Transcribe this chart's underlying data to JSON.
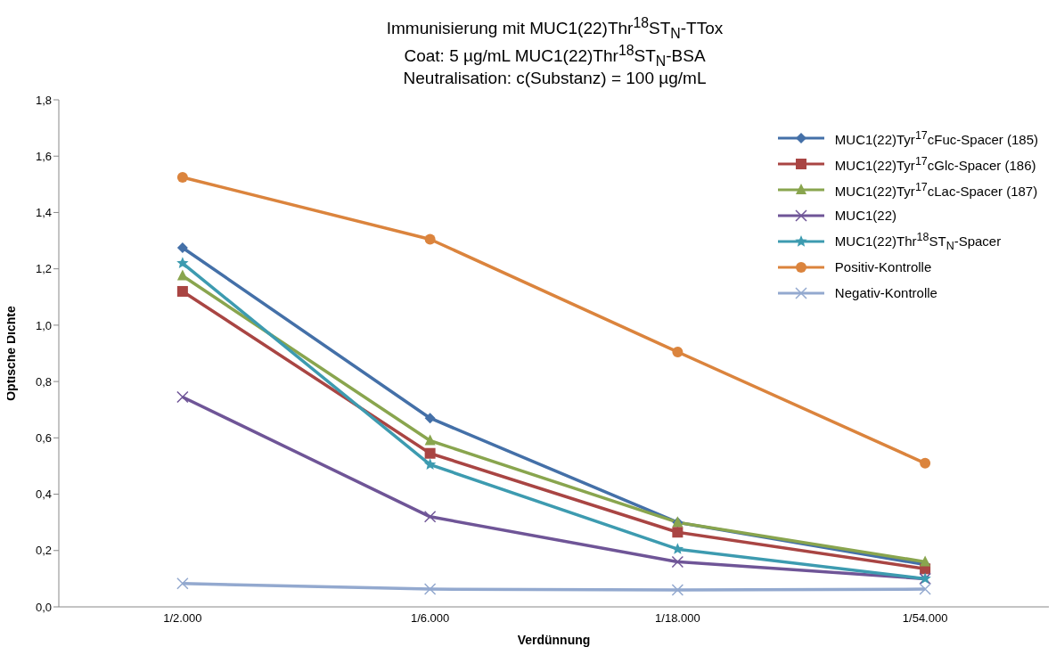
{
  "chart_data": {
    "type": "line",
    "title": "Immunisierung mit MUC1(22)Thr$^{18}$ST$_{N}$-TTox\nCoat: 5 µg/mL MUC1(22)Thr$^{18}$ST$_{N}$-BSA\nNeutralisation: c(Substanz) = 100 µg/mL",
    "xlabel": "Verdünnung",
    "ylabel": "Optische Dichte",
    "categories": [
      "1/2.000",
      "1/6.000",
      "1/18.000",
      "1/54.000"
    ],
    "series": [
      {
        "name": "MUC1(22)Tyr$^{17}$cFuc-Spacer (185)",
        "color": "#4470a8",
        "marker": "diamond",
        "values": [
          1.275,
          0.67,
          0.3,
          0.15
        ]
      },
      {
        "name": "MUC1(22)Tyr$^{17}$cGlc-Spacer (186)",
        "color": "#a94543",
        "marker": "square",
        "values": [
          1.12,
          0.545,
          0.265,
          0.135
        ]
      },
      {
        "name": "MUC1(22)Tyr$^{17}$cLac-Spacer (187)",
        "color": "#89a54e",
        "marker": "triangle",
        "values": [
          1.175,
          0.59,
          0.3,
          0.16
        ]
      },
      {
        "name": "MUC1(22)",
        "color": "#6f5597",
        "marker": "cross",
        "values": [
          0.745,
          0.32,
          0.16,
          0.1
        ]
      },
      {
        "name": "MUC1(22)Thr$^{18}$ST$_{N}$-Spacer",
        "color": "#3d9bb0",
        "marker": "star",
        "values": [
          1.22,
          0.505,
          0.205,
          0.1
        ]
      },
      {
        "name": "Positiv-Kontrolle",
        "color": "#db843d",
        "marker": "circle",
        "values": [
          1.525,
          1.305,
          0.905,
          0.51
        ]
      },
      {
        "name": "Negativ-Kontrolle",
        "color": "#93a9cf",
        "marker": "cross",
        "values": [
          0.083,
          0.063,
          0.06,
          0.063
        ]
      }
    ],
    "ylim": [
      0,
      1.8
    ],
    "yticks": [
      {
        "value": 0,
        "label": "0,0"
      },
      {
        "value": 0.2,
        "label": "0,2"
      },
      {
        "value": 0.4,
        "label": "0,4"
      },
      {
        "value": 0.6,
        "label": "0,6"
      },
      {
        "value": 0.8,
        "label": "0,8"
      },
      {
        "value": 1,
        "label": "1,0"
      },
      {
        "value": 1.2,
        "label": "1,2"
      },
      {
        "value": 1.4,
        "label": "1,4"
      },
      {
        "value": 1.6,
        "label": "1,6"
      },
      {
        "value": 1.8,
        "label": "1,8"
      }
    ],
    "grid": false,
    "legend": "top right",
    "line_style": "solid"
  }
}
